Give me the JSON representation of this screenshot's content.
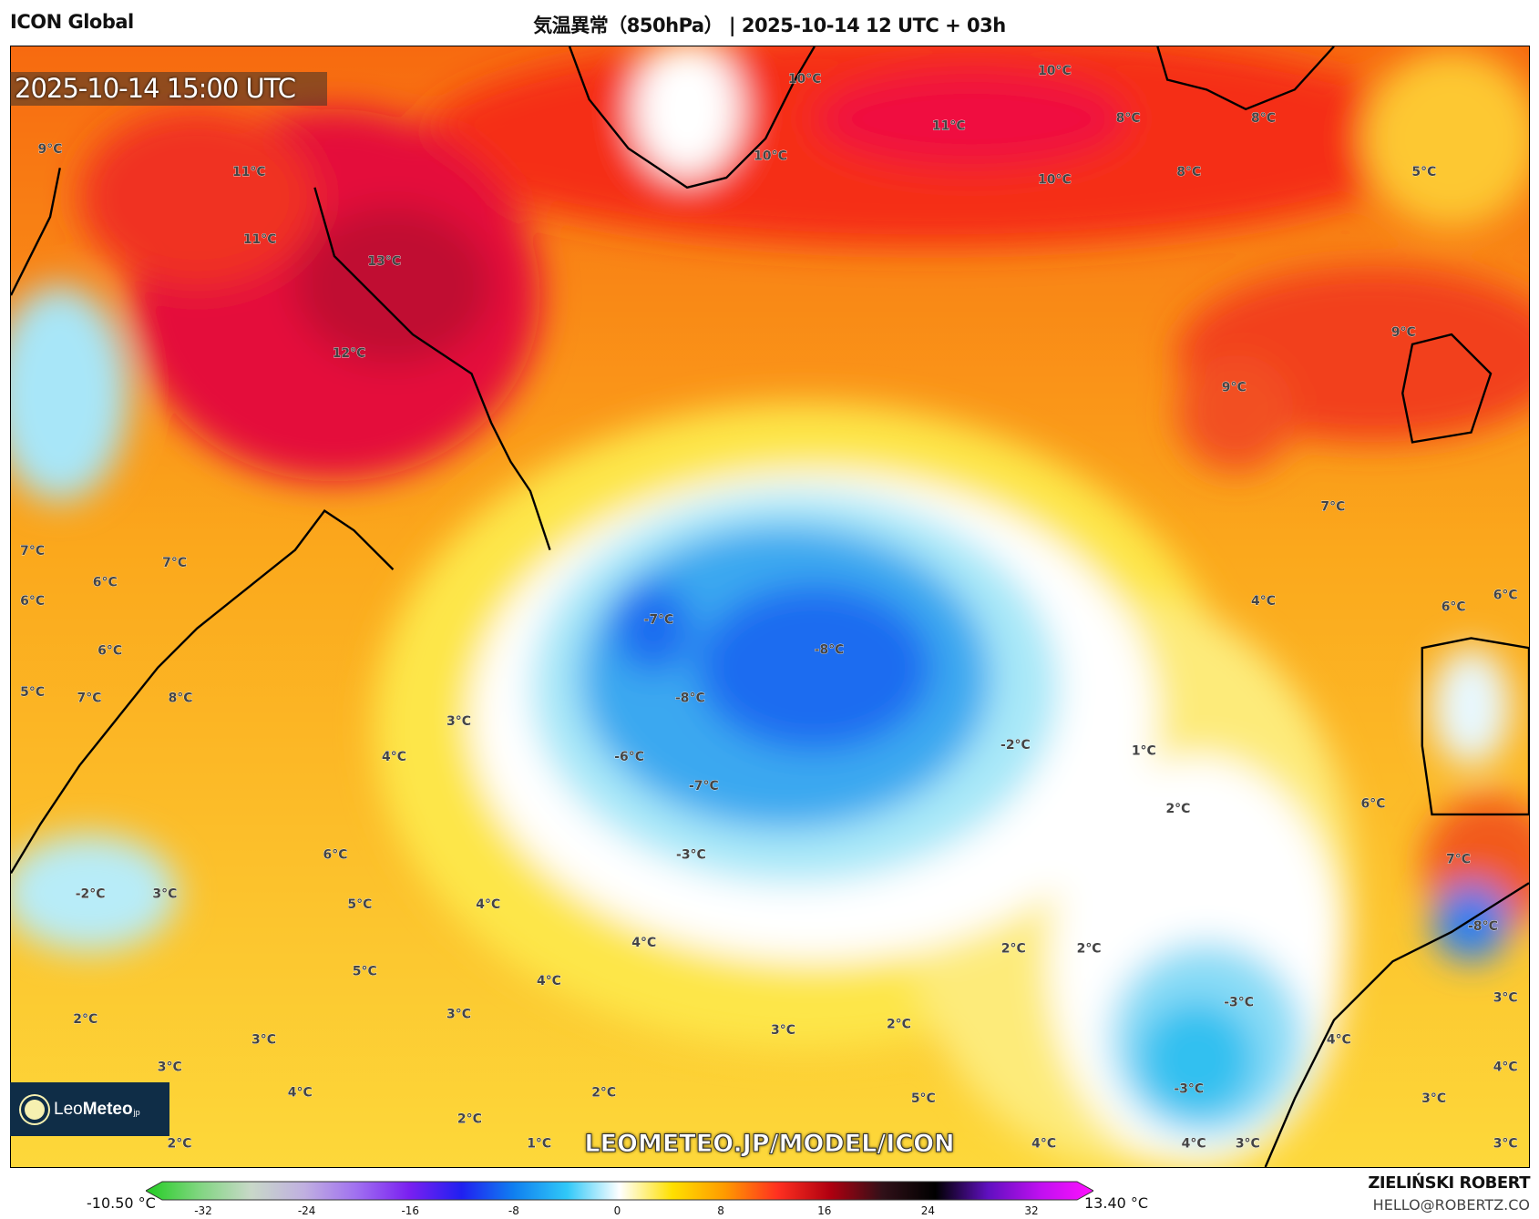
{
  "header": {
    "model": "ICON Global",
    "title": "気温異常（850hPa） | 2025-10-14 12 UTC + 03h"
  },
  "map": {
    "valid_time": "2025-10-14 15:00 UTC",
    "watermark": "LEOMETEO.JP/MODEL/ICON",
    "logo": {
      "leo": "Leo",
      "meteo": "Meteo",
      "suffix": "jp"
    },
    "labels": [
      "10°C",
      "10°C",
      "11°C",
      "8°C",
      "8°C",
      "10°C",
      "10°C",
      "8°C",
      "5°C",
      "9°C",
      "11°C",
      "11°C",
      "13°C",
      "12°C",
      "9°C",
      "9°C",
      "7°C",
      "7°C",
      "7°C",
      "6°C",
      "6°C",
      "4°C",
      "6°C",
      "6°C",
      "-7°C",
      "-8°C",
      "6°C",
      "5°C",
      "7°C",
      "8°C",
      "-8°C",
      "3°C",
      "4°C",
      "-6°C",
      "-2°C",
      "1°C",
      "-7°C",
      "2°C",
      "6°C",
      "-3°C",
      "6°C",
      "7°C",
      "-2°C",
      "3°C",
      "5°C",
      "4°C",
      "-8°C",
      "4°C",
      "2°C",
      "2°C",
      "5°C",
      "4°C",
      "-3°C",
      "3°C",
      "3°C",
      "2°C",
      "2°C",
      "3°C",
      "3°C",
      "4°C",
      "3°C",
      "4°C",
      "4°C",
      "2°C",
      "-3°C",
      "5°C",
      "3°C",
      "2°C",
      "2°C",
      "1°C",
      "4°C",
      "4°C",
      "3°C",
      "3°C"
    ]
  },
  "colorbar": {
    "min_label": "-10.50 °C",
    "max_label": "13.40 °C",
    "ticks": [
      "-32",
      "-24",
      "-16",
      "-8",
      "0",
      "8",
      "16",
      "24",
      "32"
    ],
    "colors": [
      "#22cc22",
      "#7fd67f",
      "#c8d8c8",
      "#c0b0e0",
      "#a070f0",
      "#7a20f0",
      "#2020f0",
      "#1080f0",
      "#30c8f8",
      "#ffffff",
      "#ffe000",
      "#ff9a00",
      "#ff3020",
      "#b00010",
      "#301018",
      "#000000",
      "#6010c0",
      "#c010f0",
      "#ff10ff"
    ]
  },
  "credits": {
    "author": "ZIELIŃSKI ROBERT",
    "email": "HELLO@ROBERTZ.CO"
  }
}
